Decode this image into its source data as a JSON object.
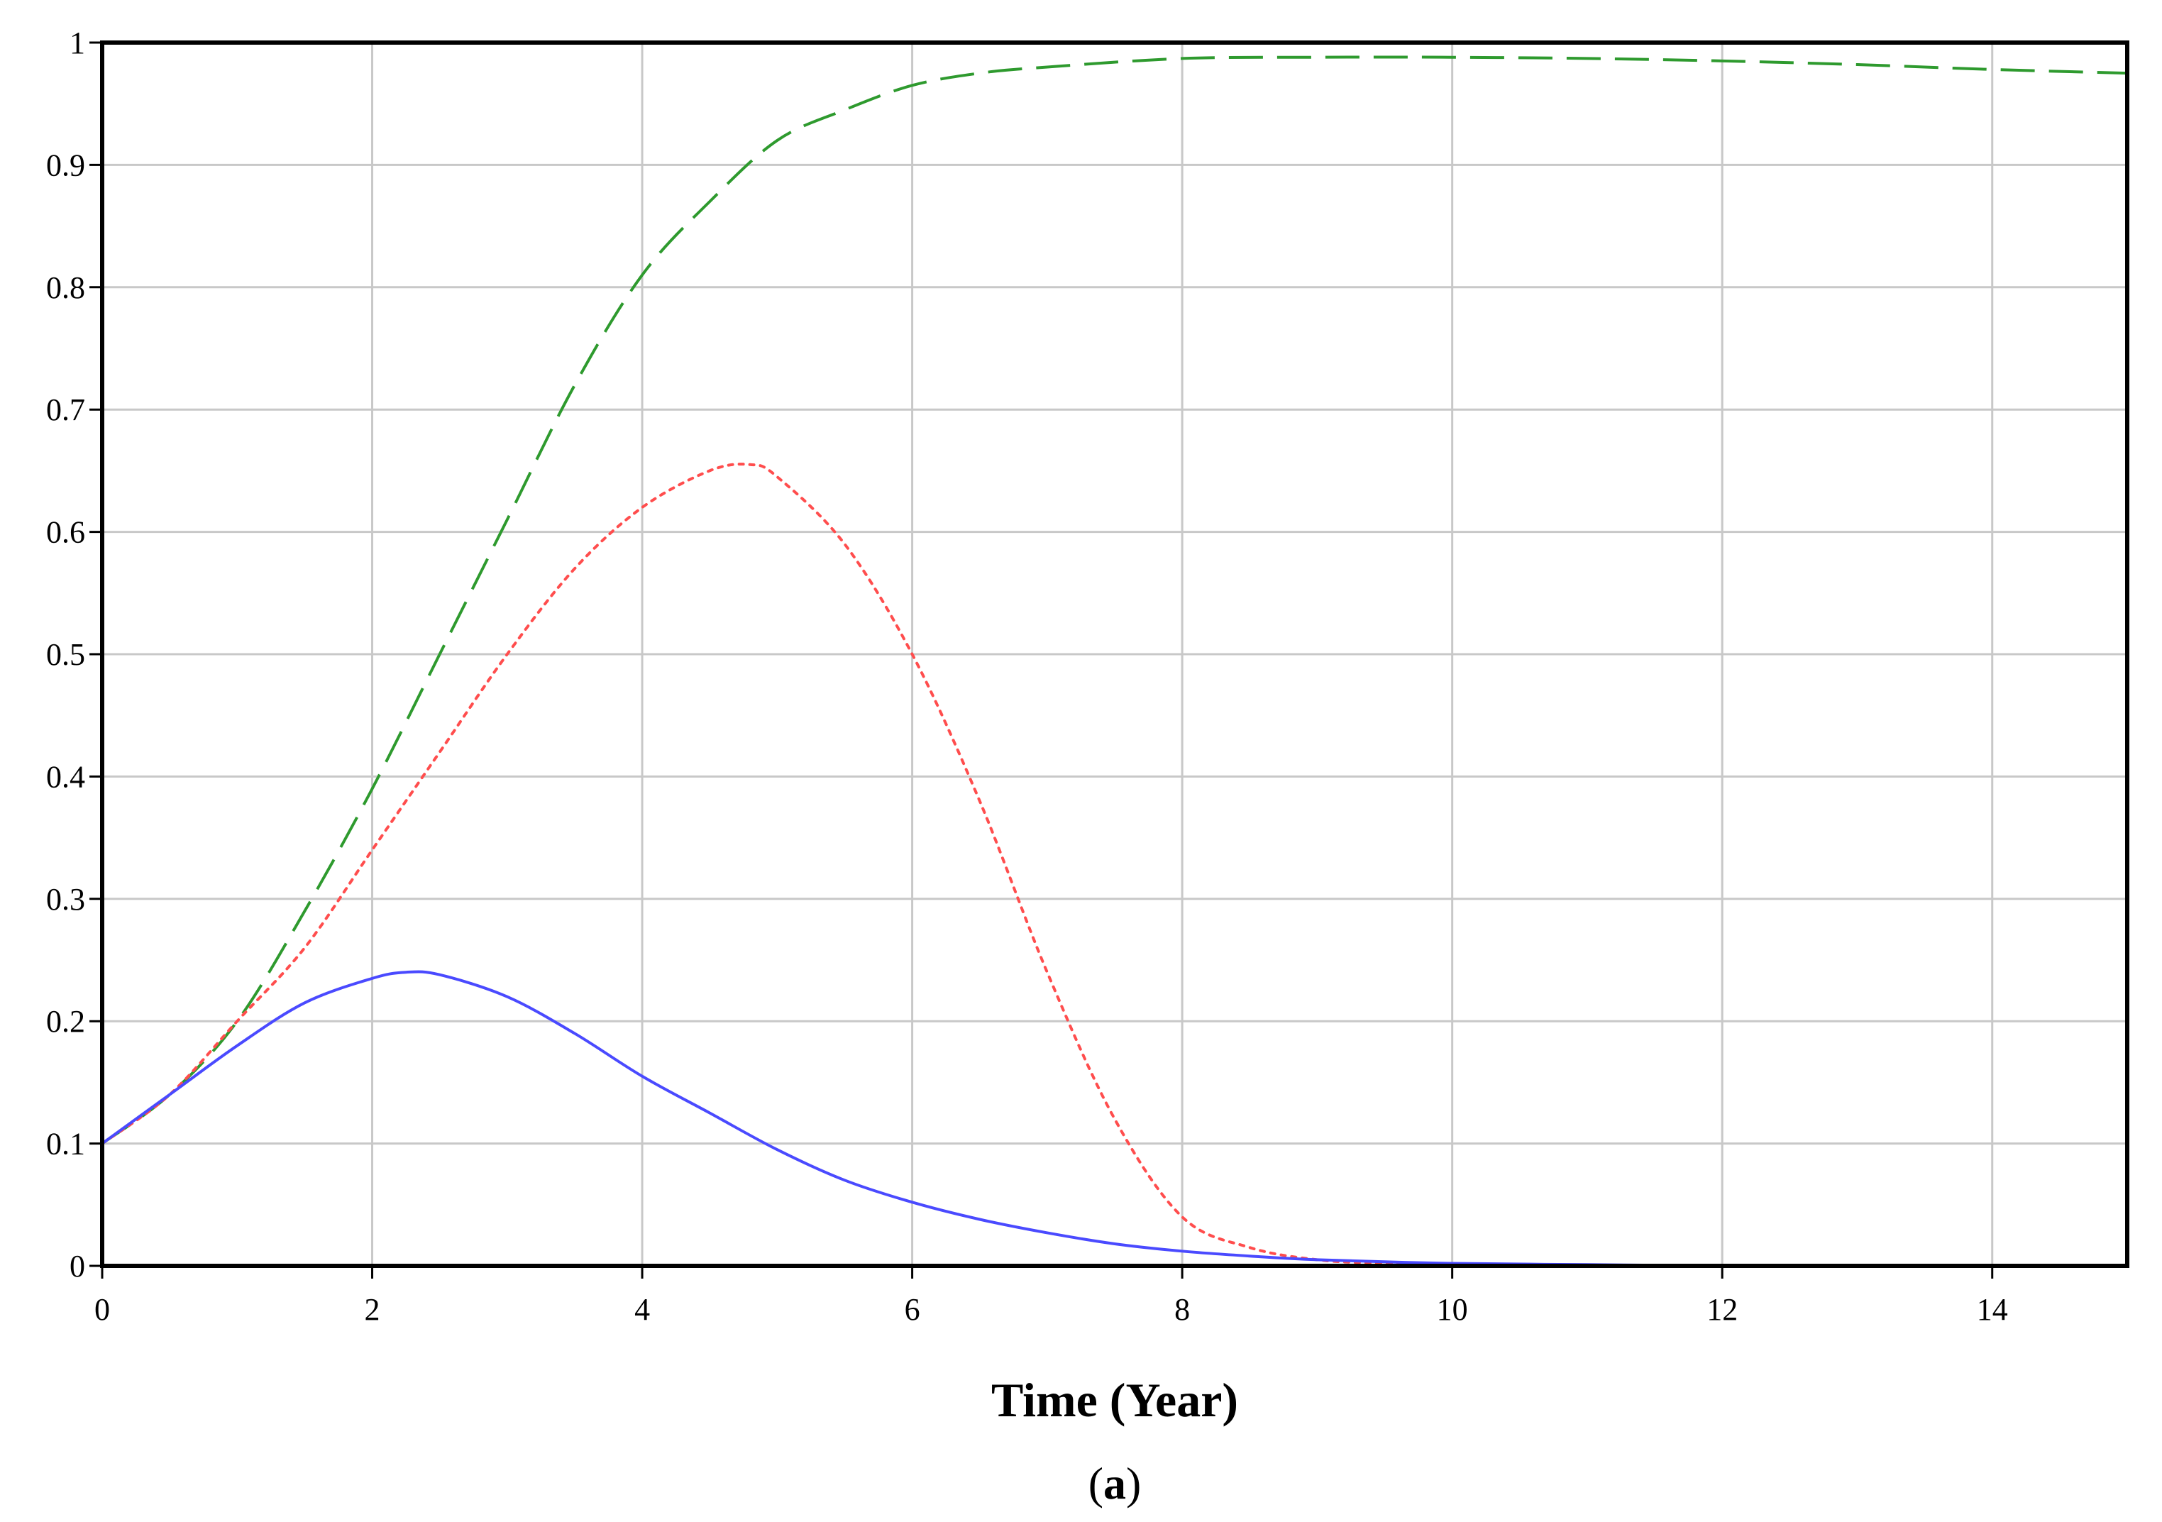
{
  "chart_data": {
    "type": "line",
    "title": "",
    "xlabel": "Time (Year)",
    "ylabel": "",
    "panel_label": "a",
    "panel_label_open": "(",
    "panel_label_close": ")",
    "xlim": [
      0,
      15
    ],
    "ylim": [
      0,
      1
    ],
    "x_ticks": [
      0,
      2,
      4,
      6,
      8,
      10,
      12,
      14
    ],
    "x_tick_labels": [
      "0",
      "2",
      "4",
      "6",
      "8",
      "10",
      "12",
      "14"
    ],
    "y_ticks": [
      0,
      0.1,
      0.2,
      0.3,
      0.4,
      0.5,
      0.6,
      0.7,
      0.8,
      0.9,
      1
    ],
    "y_tick_labels": [
      "0",
      "0.1",
      "0.2",
      "0.3",
      "0.4",
      "0.5",
      "0.6",
      "0.7",
      "0.8",
      "0.9",
      "1"
    ],
    "grid": true,
    "legend": "none",
    "series": [
      {
        "color": "#2e9a2e",
        "dash": "dashed",
        "x": [
          0,
          0.5,
          1,
          1.5,
          2,
          2.5,
          3,
          3.5,
          4,
          4.5,
          5,
          5.5,
          6,
          6.5,
          7,
          8,
          9,
          10,
          11,
          12,
          13,
          14,
          15
        ],
        "values": [
          0.1,
          0.14,
          0.2,
          0.29,
          0.39,
          0.5,
          0.61,
          0.72,
          0.81,
          0.87,
          0.92,
          0.945,
          0.965,
          0.975,
          0.98,
          0.987,
          0.988,
          0.988,
          0.987,
          0.985,
          0.982,
          0.978,
          0.975
        ]
      },
      {
        "color": "#ff4d4d",
        "dash": "dotted",
        "x": [
          0,
          0.5,
          1,
          1.5,
          2,
          2.5,
          3,
          3.5,
          4,
          4.5,
          4.8,
          5,
          5.5,
          6,
          6.5,
          7,
          7.5,
          8,
          8.5,
          9,
          9.5,
          10,
          11,
          12,
          13,
          14,
          15
        ],
        "values": [
          0.1,
          0.14,
          0.2,
          0.26,
          0.34,
          0.42,
          0.5,
          0.57,
          0.62,
          0.65,
          0.655,
          0.645,
          0.59,
          0.5,
          0.38,
          0.24,
          0.12,
          0.04,
          0.015,
          0.005,
          0.002,
          0.001,
          0,
          0,
          0,
          0,
          0
        ]
      },
      {
        "color": "#4a4aff",
        "dash": "solid",
        "x": [
          0,
          0.5,
          1,
          1.5,
          2,
          2.25,
          2.5,
          3,
          3.5,
          4,
          4.5,
          5,
          5.5,
          6,
          6.5,
          7,
          7.5,
          8,
          8.5,
          9,
          10,
          11,
          12,
          13,
          14,
          15
        ],
        "values": [
          0.1,
          0.14,
          0.18,
          0.215,
          0.235,
          0.24,
          0.238,
          0.22,
          0.19,
          0.155,
          0.125,
          0.095,
          0.07,
          0.052,
          0.038,
          0.027,
          0.018,
          0.012,
          0.008,
          0.005,
          0.002,
          0.001,
          0,
          0,
          0,
          0
        ]
      }
    ]
  }
}
